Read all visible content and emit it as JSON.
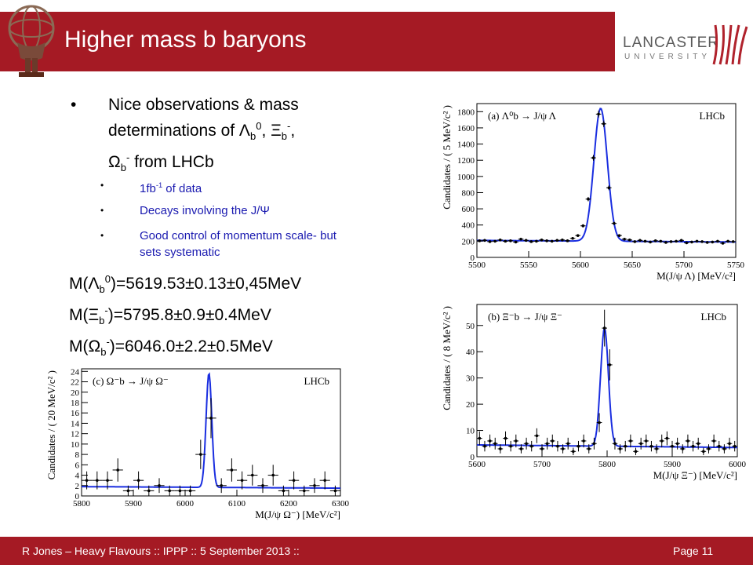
{
  "slide": {
    "title": "Higher mass b baryons",
    "university_name": "LANCASTER",
    "university_sub": "UNIVERSITY",
    "footer_left": "R Jones – Heavy Flavours  ::  IPPP  :: 5 September 2013  ::",
    "page_label": "Page 11"
  },
  "bullets": {
    "main": {
      "line1": "Nice observations & mass",
      "line2a": "determinations of Λ",
      "line2_sub1": "b",
      "line2_sup1": "0",
      "line2b": ", Ξ",
      "line2_sub2": "b",
      "line2_sup2": "-",
      "line2c": ",",
      "line3a": "Ω",
      "line3_sub": "b",
      "line3_sup": "-",
      "line3b": " from LHCb"
    },
    "sub1a": "1fb",
    "sub1_sup": "-1",
    "sub1b": " of data",
    "sub2": "Decays involving the J/Ψ",
    "sub3": "Good control of momentum scale- but sets systematic"
  },
  "masses": {
    "m1a": "M(Λ",
    "m1_sub": "b",
    "m1_sup": "0",
    "m1b": ")=5619.53±0.13±0,45MeV",
    "m2a": "M(Ξ",
    "m2_sub": "b",
    "m2_sup": "-",
    "m2b": ")=5795.8±0.9±0.4MeV",
    "m3a": "M(Ω",
    "m3_sub": "b",
    "m3_sup": "-",
    "m3b": ")=6046.0±2.2±0.5MeV"
  },
  "chart_data": [
    {
      "type": "scatter",
      "panel_label": "(a) Λ⁰b → J/ψ Λ",
      "experiment_label": "LHCb",
      "xlabel": "M(J/ψ Λ)  [MeV/c²]",
      "ylabel": "Candidates / ( 5 MeV/c² )",
      "xlim": [
        5500,
        5750
      ],
      "ylim": [
        0,
        1900
      ],
      "xticks": [
        5500,
        5550,
        5600,
        5650,
        5700,
        5750
      ],
      "yticks": [
        0,
        200,
        400,
        600,
        800,
        1000,
        1200,
        1400,
        1600,
        1800
      ],
      "fit": {
        "peak": 5619.5,
        "sigma": 6.5,
        "amplitude": 1640,
        "background": [
          210,
          190
        ]
      },
      "x": [
        5502.5,
        5507.5,
        5512.5,
        5517.5,
        5522.5,
        5527.5,
        5532.5,
        5537.5,
        5542.5,
        5547.5,
        5552.5,
        5557.5,
        5562.5,
        5567.5,
        5572.5,
        5577.5,
        5582.5,
        5587.5,
        5592.5,
        5597.5,
        5602.5,
        5607.5,
        5612.5,
        5617.5,
        5622.5,
        5627.5,
        5632.5,
        5637.5,
        5642.5,
        5647.5,
        5652.5,
        5657.5,
        5662.5,
        5667.5,
        5672.5,
        5677.5,
        5682.5,
        5687.5,
        5692.5,
        5697.5,
        5702.5,
        5707.5,
        5712.5,
        5717.5,
        5722.5,
        5727.5,
        5732.5,
        5737.5,
        5742.5,
        5747.5
      ],
      "y": [
        205,
        210,
        195,
        200,
        215,
        200,
        205,
        190,
        225,
        210,
        195,
        200,
        215,
        205,
        200,
        210,
        215,
        205,
        235,
        270,
        390,
        720,
        1230,
        1770,
        1650,
        860,
        420,
        270,
        225,
        215,
        195,
        210,
        200,
        190,
        205,
        200,
        185,
        195,
        200,
        210,
        180,
        190,
        200,
        195,
        185,
        190,
        200,
        175,
        200,
        195
      ]
    },
    {
      "type": "scatter",
      "panel_label": "(b) Ξ⁻b → J/ψ Ξ⁻",
      "experiment_label": "LHCb",
      "xlabel": "M(J/ψ Ξ⁻)  [MeV/c²]",
      "ylabel": "Candidates / ( 8 MeV/c² )",
      "xlim": [
        5600,
        6000
      ],
      "ylim": [
        0,
        58
      ],
      "xticks": [
        5600,
        5700,
        5800,
        5900,
        6000
      ],
      "yticks": [
        0,
        10,
        20,
        30,
        40,
        50
      ],
      "fit": {
        "peak": 5796,
        "sigma": 6,
        "amplitude": 45,
        "background": [
          4.5,
          3.5
        ]
      },
      "x": [
        5604,
        5612,
        5620,
        5628,
        5636,
        5644,
        5652,
        5660,
        5668,
        5676,
        5684,
        5692,
        5700,
        5708,
        5716,
        5724,
        5732,
        5740,
        5748,
        5756,
        5764,
        5772,
        5780,
        5788,
        5796,
        5804,
        5812,
        5820,
        5828,
        5836,
        5844,
        5852,
        5860,
        5868,
        5876,
        5884,
        5892,
        5900,
        5908,
        5916,
        5924,
        5932,
        5940,
        5948,
        5956,
        5964,
        5972,
        5980,
        5988,
        5996
      ],
      "y": [
        7,
        4,
        6,
        5,
        3,
        7,
        4,
        6,
        3,
        5,
        4,
        8,
        3,
        5,
        6,
        4,
        3,
        5,
        2,
        4,
        6,
        3,
        5,
        13,
        49,
        35,
        5,
        3,
        4,
        6,
        2,
        5,
        6,
        4,
        3,
        6,
        7,
        4,
        5,
        3,
        6,
        4,
        5,
        2,
        3,
        6,
        4,
        3,
        5,
        4
      ]
    },
    {
      "type": "scatter",
      "panel_label": "(c) Ω⁻b → J/ψ Ω⁻",
      "experiment_label": "LHCb",
      "xlabel": "M(J/ψ Ω⁻)  [MeV/c²]",
      "ylabel": "Candidates / ( 20 MeV/c² )",
      "xlim": [
        5800,
        6300
      ],
      "ylim": [
        0,
        24.5
      ],
      "xticks": [
        5800,
        5900,
        6000,
        6100,
        6200,
        6300
      ],
      "yticks": [
        0,
        2,
        4,
        6,
        8,
        10,
        12,
        14,
        16,
        18,
        20,
        22,
        24
      ],
      "fit": {
        "peak": 6046,
        "sigma": 5.5,
        "amplitude": 22,
        "background": [
          1.8,
          1.5
        ]
      },
      "x": [
        5810,
        5830,
        5850,
        5870,
        5890,
        5910,
        5930,
        5950,
        5970,
        5990,
        6010,
        6030,
        6050,
        6070,
        6090,
        6110,
        6130,
        6150,
        6170,
        6190,
        6210,
        6230,
        6250,
        6270,
        6290
      ],
      "y": [
        3,
        3,
        3,
        5,
        1,
        3,
        1,
        2,
        1,
        1,
        1,
        8,
        15,
        2,
        5,
        3,
        4,
        2,
        4,
        1,
        3,
        1,
        2,
        3,
        1
      ]
    }
  ]
}
